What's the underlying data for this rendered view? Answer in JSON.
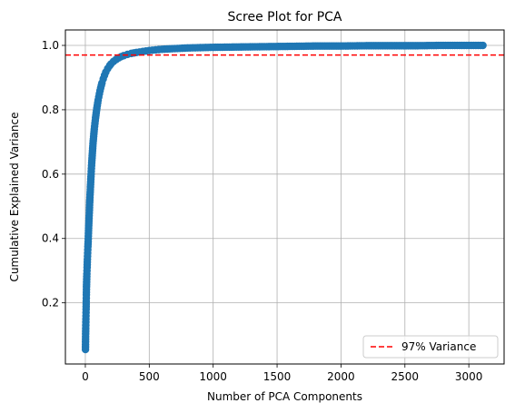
{
  "chart_data": {
    "type": "scatter",
    "title": "Scree Plot for PCA",
    "xlabel": "Number of PCA Components",
    "ylabel": "Cumulative Explained Variance",
    "xlim": [
      -156,
      3276
    ],
    "ylim": [
      0.01,
      1.048
    ],
    "xticks": [
      0,
      500,
      1000,
      1500,
      2000,
      2500,
      3000
    ],
    "yticks": [
      0.2,
      0.4,
      0.6,
      0.8,
      1.0
    ],
    "grid": true,
    "legend_position": "lower-right",
    "series": [
      {
        "name": "",
        "color": "#1f77b4",
        "marker": "circle",
        "x": [
          1,
          2,
          3,
          4,
          5,
          6,
          7,
          8,
          9,
          10,
          12,
          14,
          16,
          18,
          20,
          22,
          25,
          28,
          31,
          35,
          40,
          45,
          50,
          55,
          60,
          70,
          80,
          90,
          100,
          110,
          120,
          130,
          140,
          150,
          160,
          175,
          190,
          200,
          220,
          240,
          260,
          280,
          300,
          330,
          360,
          400,
          450,
          500,
          550,
          600,
          700,
          800,
          900,
          1000,
          1200,
          1400,
          1600,
          1800,
          2000,
          2200,
          2400,
          2600,
          2800,
          3000,
          3110
        ],
        "values": [
          0.055,
          0.095,
          0.12,
          0.14,
          0.16,
          0.18,
          0.205,
          0.225,
          0.25,
          0.265,
          0.29,
          0.31,
          0.335,
          0.355,
          0.375,
          0.39,
          0.425,
          0.455,
          0.48,
          0.52,
          0.56,
          0.6,
          0.635,
          0.665,
          0.695,
          0.74,
          0.775,
          0.805,
          0.83,
          0.85,
          0.868,
          0.883,
          0.896,
          0.907,
          0.917,
          0.928,
          0.937,
          0.942,
          0.95,
          0.956,
          0.961,
          0.965,
          0.968,
          0.972,
          0.975,
          0.978,
          0.981,
          0.984,
          0.986,
          0.988,
          0.99,
          0.992,
          0.993,
          0.994,
          0.995,
          0.996,
          0.997,
          0.998,
          0.998,
          0.999,
          0.999,
          0.999,
          1.0,
          1.0,
          1.0
        ]
      }
    ],
    "threshold_line": {
      "label": "97% Variance",
      "y": 0.97,
      "color": "#ff0000",
      "style": "dashed"
    }
  }
}
